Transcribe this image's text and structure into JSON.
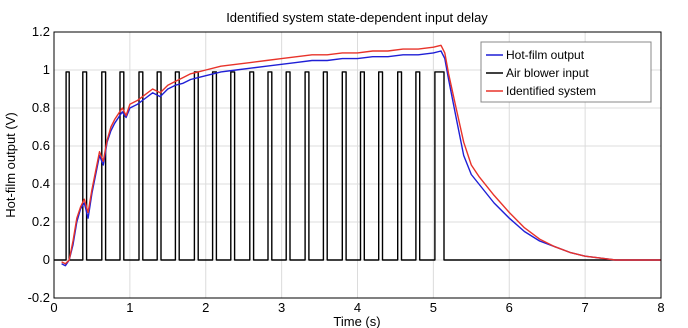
{
  "chart_data": {
    "type": "line",
    "title": "Identified system state-dependent input delay",
    "xlabel": "Time (s)",
    "ylabel": "Hot-film output (V)",
    "xlim": [
      0,
      8
    ],
    "ylim": [
      -0.2,
      1.2
    ],
    "x_ticks": [
      0,
      1,
      2,
      3,
      4,
      5,
      6,
      7,
      8
    ],
    "y_ticks": [
      -0.2,
      0,
      0.2,
      0.4,
      0.6,
      0.8,
      1,
      1.2
    ],
    "grid": true,
    "legend_position": "top-right",
    "colors": {
      "hot_film": "#1f1fd6",
      "blower": "#000000",
      "identified": "#e8332a"
    },
    "series": [
      {
        "name": "Hot-film output",
        "color": "#1f1fd6",
        "x": [
          0.1,
          0.15,
          0.2,
          0.25,
          0.3,
          0.35,
          0.4,
          0.45,
          0.5,
          0.55,
          0.6,
          0.65,
          0.7,
          0.75,
          0.8,
          0.85,
          0.9,
          0.95,
          1.0,
          1.1,
          1.2,
          1.3,
          1.4,
          1.5,
          1.6,
          1.7,
          1.8,
          1.9,
          2.0,
          2.2,
          2.4,
          2.6,
          2.8,
          3.0,
          3.2,
          3.4,
          3.6,
          3.8,
          4.0,
          4.2,
          4.4,
          4.6,
          4.8,
          5.0,
          5.1,
          5.15,
          5.2,
          5.3,
          5.4,
          5.5,
          5.6,
          5.8,
          6.0,
          6.2,
          6.4,
          6.6,
          6.8,
          7.0,
          7.2,
          7.4,
          7.6,
          7.8,
          8.0
        ],
        "y": [
          -0.02,
          -0.03,
          0.0,
          0.08,
          0.2,
          0.27,
          0.3,
          0.22,
          0.35,
          0.45,
          0.55,
          0.5,
          0.62,
          0.68,
          0.72,
          0.75,
          0.78,
          0.75,
          0.8,
          0.82,
          0.85,
          0.88,
          0.86,
          0.9,
          0.92,
          0.93,
          0.95,
          0.96,
          0.97,
          0.99,
          1.0,
          1.01,
          1.02,
          1.03,
          1.04,
          1.05,
          1.05,
          1.06,
          1.06,
          1.07,
          1.07,
          1.08,
          1.08,
          1.09,
          1.1,
          1.06,
          0.95,
          0.75,
          0.55,
          0.45,
          0.4,
          0.3,
          0.22,
          0.15,
          0.1,
          0.07,
          0.04,
          0.02,
          0.01,
          0.0,
          0.0,
          0.0,
          0.0
        ]
      },
      {
        "name": "Air blower input",
        "color": "#000000",
        "x": [
          0,
          0.16,
          0.16,
          0.2,
          0.2,
          0.38,
          0.38,
          0.43,
          0.43,
          0.63,
          0.63,
          0.68,
          0.68,
          0.87,
          0.87,
          0.92,
          0.92,
          1.12,
          1.12,
          1.17,
          1.17,
          1.36,
          1.36,
          1.41,
          1.41,
          1.6,
          1.6,
          1.65,
          1.65,
          1.85,
          1.85,
          1.9,
          1.9,
          2.09,
          2.09,
          2.14,
          2.14,
          2.33,
          2.33,
          2.38,
          2.38,
          2.58,
          2.58,
          2.63,
          2.63,
          2.82,
          2.82,
          2.87,
          2.87,
          3.06,
          3.06,
          3.11,
          3.11,
          3.31,
          3.31,
          3.36,
          3.36,
          3.55,
          3.55,
          3.6,
          3.6,
          3.8,
          3.8,
          3.85,
          3.85,
          4.04,
          4.04,
          4.09,
          4.09,
          4.28,
          4.28,
          4.33,
          4.33,
          4.53,
          4.53,
          4.58,
          4.58,
          4.77,
          4.77,
          4.82,
          4.82,
          5.02,
          5.02,
          5.14,
          5.14,
          8
        ],
        "y": [
          0,
          0,
          0.99,
          0.99,
          0,
          0,
          0.99,
          0.99,
          0,
          0,
          0.99,
          0.99,
          0,
          0,
          0.99,
          0.99,
          0,
          0,
          0.99,
          0.99,
          0,
          0,
          0.99,
          0.99,
          0,
          0,
          0.99,
          0.99,
          0,
          0,
          0.99,
          0.99,
          0,
          0,
          0.99,
          0.99,
          0,
          0,
          0.99,
          0.99,
          0,
          0,
          0.99,
          0.99,
          0,
          0,
          0.99,
          0.99,
          0,
          0,
          0.99,
          0.99,
          0,
          0,
          0.99,
          0.99,
          0,
          0,
          0.99,
          0.99,
          0,
          0,
          0.99,
          0.99,
          0,
          0,
          0.99,
          0.99,
          0,
          0,
          0.99,
          0.99,
          0,
          0,
          0.99,
          0.99,
          0,
          0,
          0.99,
          0.99,
          0,
          0,
          0.99,
          0.99,
          0,
          0
        ]
      },
      {
        "name": "Identified system",
        "color": "#e8332a",
        "x": [
          0.1,
          0.15,
          0.2,
          0.25,
          0.3,
          0.35,
          0.4,
          0.45,
          0.5,
          0.55,
          0.6,
          0.65,
          0.7,
          0.75,
          0.8,
          0.85,
          0.9,
          0.95,
          1.0,
          1.1,
          1.2,
          1.3,
          1.4,
          1.5,
          1.6,
          1.7,
          1.8,
          1.9,
          2.0,
          2.2,
          2.4,
          2.6,
          2.8,
          3.0,
          3.2,
          3.4,
          3.6,
          3.8,
          4.0,
          4.2,
          4.4,
          4.6,
          4.8,
          5.0,
          5.1,
          5.15,
          5.2,
          5.3,
          5.4,
          5.5,
          5.6,
          5.8,
          6.0,
          6.2,
          6.4,
          6.6,
          6.8,
          7.0,
          7.2,
          7.4,
          7.6,
          7.8,
          8.0
        ],
        "y": [
          -0.01,
          -0.02,
          0.0,
          0.1,
          0.22,
          0.28,
          0.32,
          0.25,
          0.37,
          0.47,
          0.57,
          0.52,
          0.63,
          0.7,
          0.74,
          0.77,
          0.8,
          0.76,
          0.82,
          0.84,
          0.87,
          0.9,
          0.88,
          0.92,
          0.94,
          0.96,
          0.98,
          0.99,
          1.0,
          1.02,
          1.03,
          1.04,
          1.05,
          1.06,
          1.07,
          1.08,
          1.08,
          1.09,
          1.09,
          1.1,
          1.1,
          1.11,
          1.11,
          1.12,
          1.13,
          1.09,
          0.98,
          0.8,
          0.62,
          0.5,
          0.44,
          0.34,
          0.25,
          0.17,
          0.11,
          0.07,
          0.04,
          0.02,
          0.01,
          0.0,
          0.0,
          0.0,
          0.0
        ]
      }
    ]
  }
}
